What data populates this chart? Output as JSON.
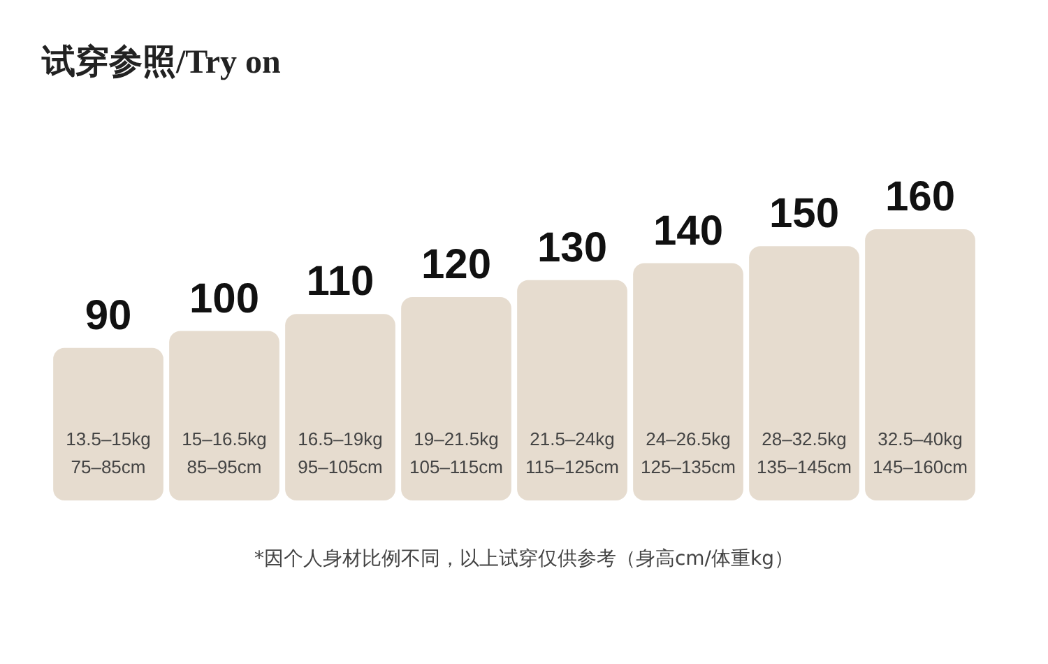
{
  "chart_data": {
    "type": "bar",
    "title": "试穿参照/Try on",
    "categories": [
      "13.5–15kg\n75–85cm",
      "15–16.5kg\n85–95cm",
      "16.5–19kg\n95–105cm",
      "19–21.5kg\n105–115cm",
      "21.5–24kg\n115–125cm",
      "24–26.5kg\n125–135cm",
      "28–32.5kg\n135–145cm",
      "32.5–40kg\n145–160cm"
    ],
    "values": [
      90,
      100,
      110,
      120,
      130,
      140,
      150,
      160
    ],
    "color": "#e6dccf",
    "data_labels": true,
    "annotations": [
      "*因个人身材比例不同，以上试穿仅供参考（身高cm/体重kg）"
    ]
  }
}
